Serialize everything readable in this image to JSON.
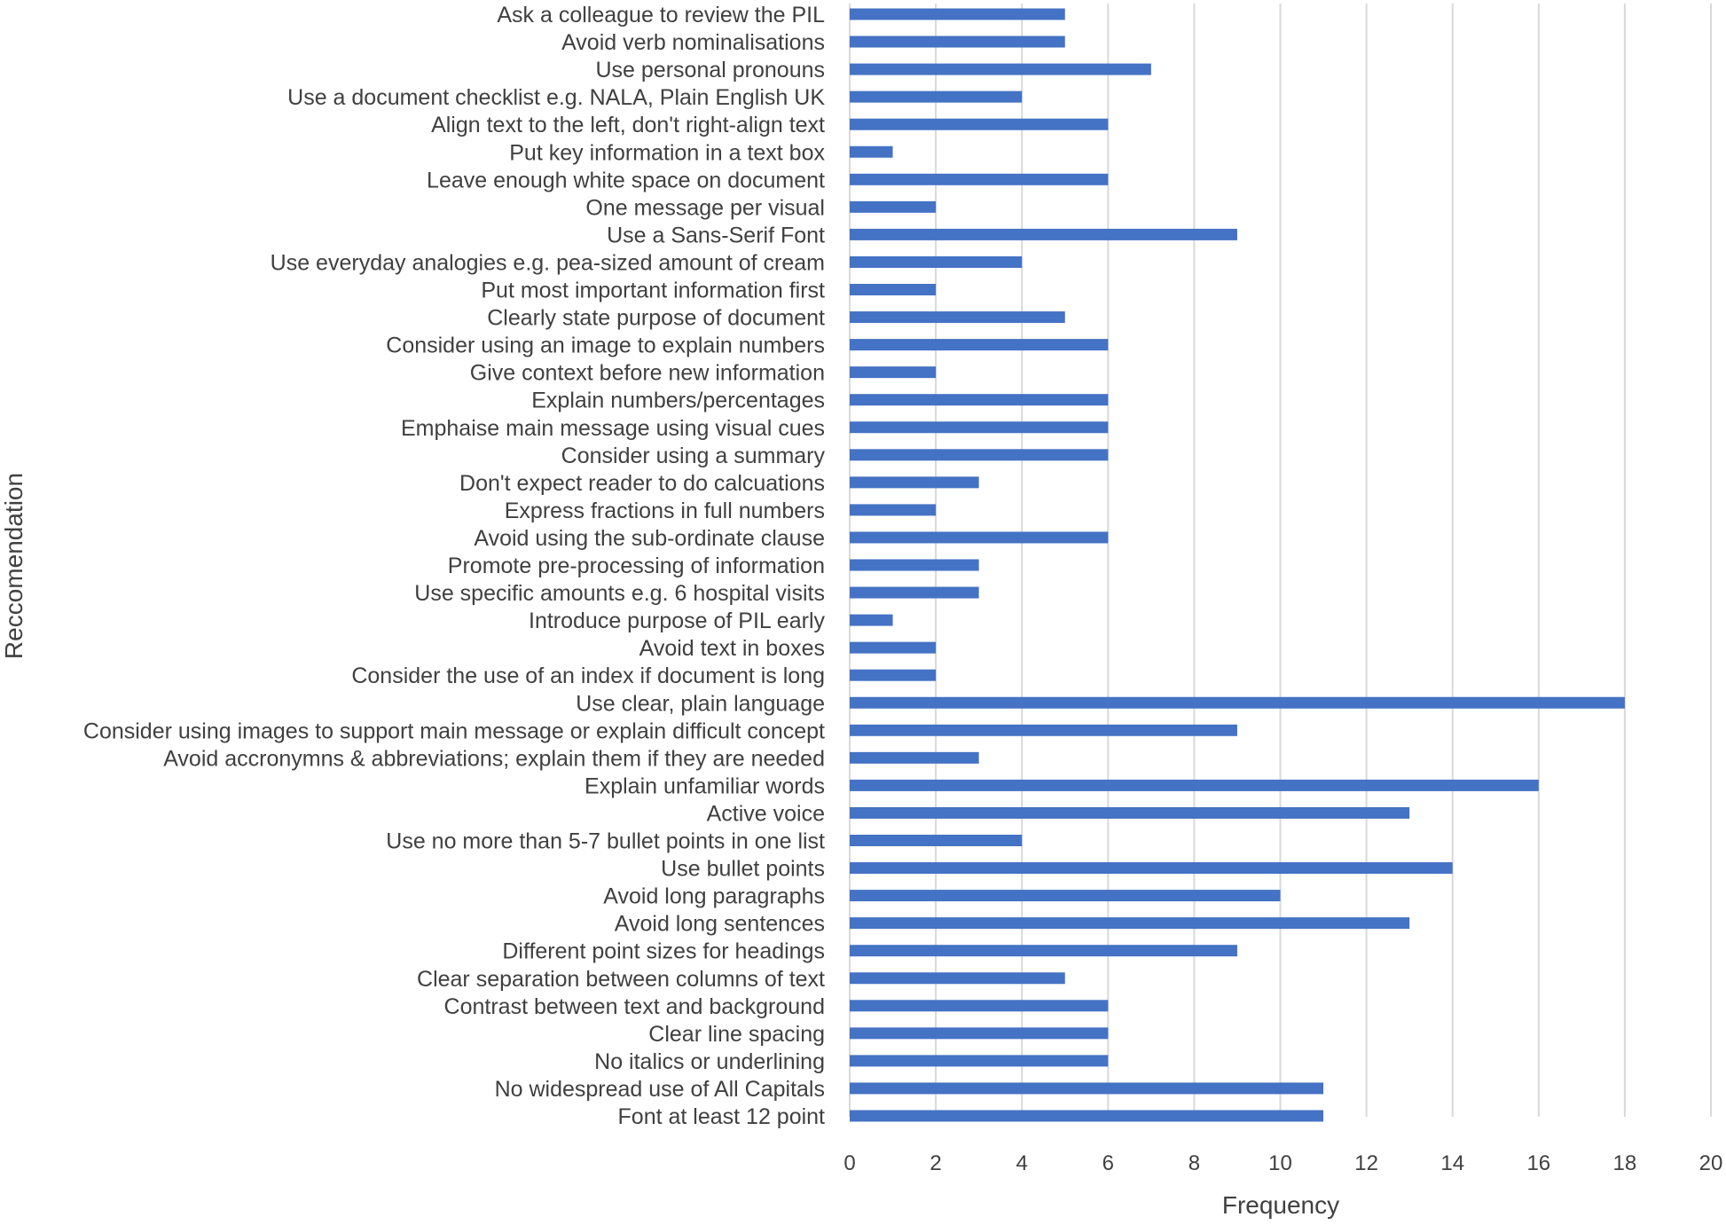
{
  "chart_data": {
    "type": "bar",
    "orientation": "horizontal",
    "xlabel": "Frequency",
    "ylabel": "Reccomendation",
    "xlim": [
      0,
      20
    ],
    "xticks": [
      0,
      2,
      4,
      6,
      8,
      10,
      12,
      14,
      16,
      18,
      20
    ],
    "grid": true,
    "bar_color": "#4472C4",
    "grid_color": "#D9D9D9",
    "categories": [
      "Ask a colleague to review the PIL",
      "Avoid verb nominalisations",
      "Use personal pronouns",
      "Use a document checklist e.g. NALA, Plain English UK",
      "Align text to the left, don't right-align text",
      "Put key information in a text box",
      "Leave enough white space on document",
      "One message per visual",
      "Use a Sans-Serif Font",
      "Use everyday analogies e.g. pea-sized amount of cream",
      "Put most important information first",
      "Clearly state purpose of document",
      "Consider using an image to explain numbers",
      "Give context before new information",
      "Explain numbers/percentages",
      "Emphaise main message using visual cues",
      "Consider using a summary",
      "Don't expect reader to do calcuations",
      "Express fractions in full numbers",
      "Avoid using the sub-ordinate clause",
      "Promote pre-processing of information",
      "Use specific amounts e.g. 6 hospital visits",
      "Introduce purpose of PIL early",
      "Avoid text in boxes",
      "Consider the use of an index if document is long",
      "Use clear, plain language",
      "Consider using images to support main message or explain difficult concept",
      "Avoid accronymns & abbreviations; explain them if they are needed",
      "Explain unfamiliar words",
      "Active voice",
      "Use no more than 5-7 bullet points in one list",
      "Use bullet points",
      "Avoid long paragraphs",
      "Avoid long sentences",
      "Different point sizes for headings",
      "Clear separation between columns of text",
      "Contrast between text and background",
      "Clear line spacing",
      "No italics or underlining",
      "No widespread use of All Capitals",
      "Font at least 12 point"
    ],
    "values": [
      5,
      5,
      7,
      4,
      6,
      1,
      6,
      2,
      9,
      4,
      2,
      5,
      6,
      2,
      6,
      6,
      6,
      3,
      2,
      6,
      3,
      3,
      1,
      2,
      2,
      18,
      9,
      3,
      16,
      13,
      4,
      14,
      10,
      13,
      9,
      5,
      6,
      6,
      6,
      11,
      11
    ]
  }
}
